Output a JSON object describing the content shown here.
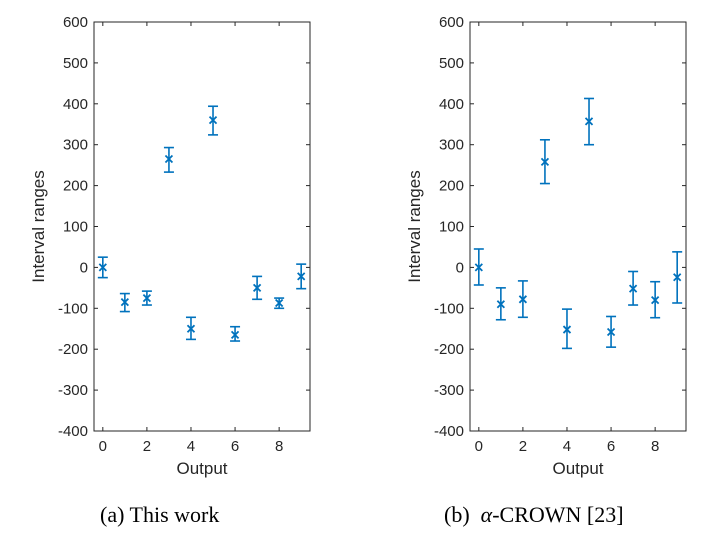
{
  "chart_data": [
    {
      "type": "errorbar",
      "panel": "a",
      "caption": "(a)  This work",
      "xlabel": "Output",
      "ylabel": "Interval ranges",
      "xlim": [
        -0.4,
        9.4
      ],
      "ylim": [
        -400,
        600
      ],
      "xticks": [
        0,
        2,
        4,
        6,
        8
      ],
      "yticks": [
        -400,
        -300,
        -200,
        -100,
        0,
        100,
        200,
        300,
        400,
        500,
        600
      ],
      "marker": "x",
      "color": "#0072BD",
      "x": [
        0,
        1,
        2,
        3,
        4,
        5,
        6,
        7,
        8,
        9
      ],
      "y": [
        0,
        -85,
        -75,
        265,
        -150,
        360,
        -165,
        -50,
        -87,
        -22
      ],
      "lower": [
        -25,
        -108,
        -92,
        233,
        -176,
        324,
        -180,
        -78,
        -100,
        -52
      ],
      "upper": [
        25,
        -64,
        -58,
        293,
        -122,
        394,
        -145,
        -22,
        -75,
        8
      ]
    },
    {
      "type": "errorbar",
      "panel": "b",
      "caption_prefix": "(b)",
      "caption_symbol": "α",
      "caption_suffix": "-CROWN [23]",
      "xlabel": "Output",
      "ylabel": "Interval ranges",
      "xlim": [
        -0.4,
        9.4
      ],
      "ylim": [
        -400,
        600
      ],
      "xticks": [
        0,
        2,
        4,
        6,
        8
      ],
      "yticks": [
        -400,
        -300,
        -200,
        -100,
        0,
        100,
        200,
        300,
        400,
        500,
        600
      ],
      "marker": "x",
      "color": "#0072BD",
      "x": [
        0,
        1,
        2,
        3,
        4,
        5,
        6,
        7,
        8,
        9
      ],
      "y": [
        0,
        -90,
        -78,
        258,
        -152,
        357,
        -158,
        -52,
        -80,
        -24
      ],
      "lower": [
        -43,
        -128,
        -122,
        205,
        -198,
        300,
        -195,
        -92,
        -123,
        -87
      ],
      "upper": [
        45,
        -50,
        -33,
        312,
        -102,
        413,
        -120,
        -10,
        -35,
        38
      ]
    }
  ]
}
